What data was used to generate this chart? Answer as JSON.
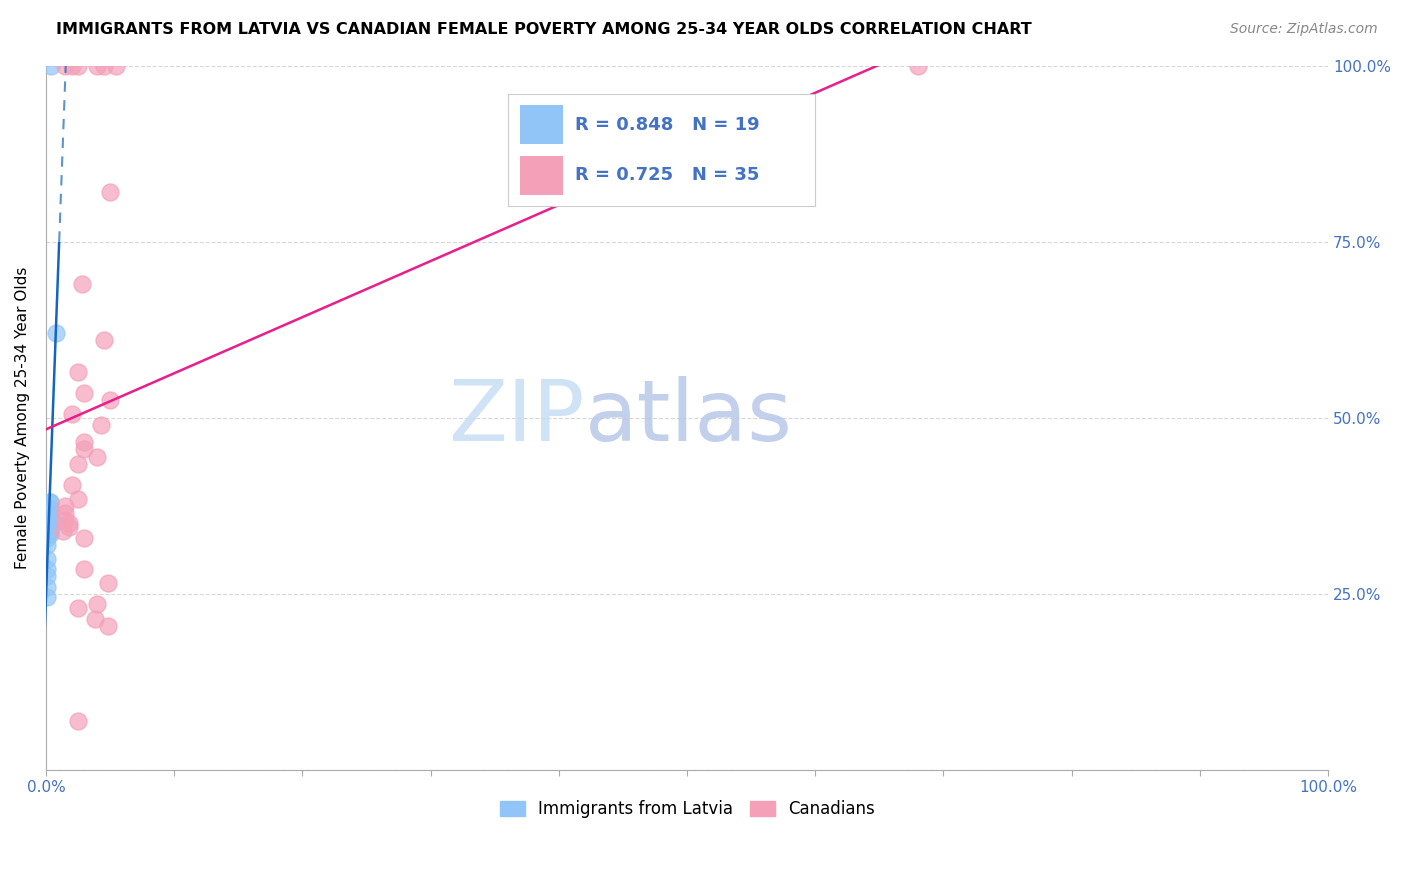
{
  "title": "IMMIGRANTS FROM LATVIA VS CANADIAN FEMALE POVERTY AMONG 25-34 YEAR OLDS CORRELATION CHART",
  "source": "Source: ZipAtlas.com",
  "ylabel": "Female Poverty Among 25-34 Year Olds",
  "background_color": "#ffffff",
  "watermark_zip": "ZIP",
  "watermark_atlas": "atlas",
  "xlim": [
    0,
    1.0
  ],
  "ylim": [
    0,
    1.0
  ],
  "xtick_positions": [
    0.0,
    0.5,
    1.0
  ],
  "xticklabels_map": {
    "0.0": "0.0%",
    "0.5": "",
    "1.0": "100.0%"
  },
  "ytick_positions": [
    0.0,
    0.25,
    0.5,
    0.75,
    1.0
  ],
  "yticklabels_map": {
    "0.0": "",
    "0.25": "25.0%",
    "0.5": "50.0%",
    "0.75": "75.0%",
    "1.0": "100.0%"
  },
  "latvia_R": 0.848,
  "latvia_N": 19,
  "canadian_R": 0.725,
  "canadian_N": 35,
  "latvia_color": "#92c5f7",
  "canadian_color": "#f4a0b8",
  "latvia_line_color": "#1565c0",
  "canadian_line_color": "#e91e8c",
  "tick_color": "#4472c4",
  "legend_border_color": "#cccccc",
  "grid_color": "#d8d8d8",
  "latvia_points": [
    [
      0.004,
      1.0
    ],
    [
      0.008,
      0.62
    ],
    [
      0.003,
      0.38
    ],
    [
      0.003,
      0.38
    ],
    [
      0.003,
      0.37
    ],
    [
      0.003,
      0.37
    ],
    [
      0.003,
      0.36
    ],
    [
      0.003,
      0.355
    ],
    [
      0.006,
      0.35
    ],
    [
      0.003,
      0.345
    ],
    [
      0.003,
      0.34
    ],
    [
      0.003,
      0.335
    ],
    [
      0.001,
      0.33
    ],
    [
      0.001,
      0.32
    ],
    [
      0.001,
      0.3
    ],
    [
      0.001,
      0.285
    ],
    [
      0.001,
      0.275
    ],
    [
      0.001,
      0.26
    ],
    [
      0.001,
      0.245
    ]
  ],
  "canadian_points": [
    [
      0.015,
      1.0
    ],
    [
      0.02,
      1.0
    ],
    [
      0.025,
      1.0
    ],
    [
      0.04,
      1.0
    ],
    [
      0.045,
      1.0
    ],
    [
      0.055,
      1.0
    ],
    [
      0.68,
      1.0
    ],
    [
      0.05,
      0.82
    ],
    [
      0.028,
      0.69
    ],
    [
      0.045,
      0.61
    ],
    [
      0.025,
      0.565
    ],
    [
      0.03,
      0.535
    ],
    [
      0.05,
      0.525
    ],
    [
      0.02,
      0.505
    ],
    [
      0.043,
      0.49
    ],
    [
      0.03,
      0.465
    ],
    [
      0.03,
      0.455
    ],
    [
      0.04,
      0.445
    ],
    [
      0.025,
      0.435
    ],
    [
      0.02,
      0.405
    ],
    [
      0.025,
      0.385
    ],
    [
      0.015,
      0.375
    ],
    [
      0.015,
      0.365
    ],
    [
      0.015,
      0.355
    ],
    [
      0.018,
      0.35
    ],
    [
      0.018,
      0.345
    ],
    [
      0.013,
      0.34
    ],
    [
      0.03,
      0.33
    ],
    [
      0.03,
      0.285
    ],
    [
      0.048,
      0.265
    ],
    [
      0.04,
      0.235
    ],
    [
      0.025,
      0.23
    ],
    [
      0.038,
      0.215
    ],
    [
      0.048,
      0.205
    ],
    [
      0.025,
      0.07
    ]
  ]
}
